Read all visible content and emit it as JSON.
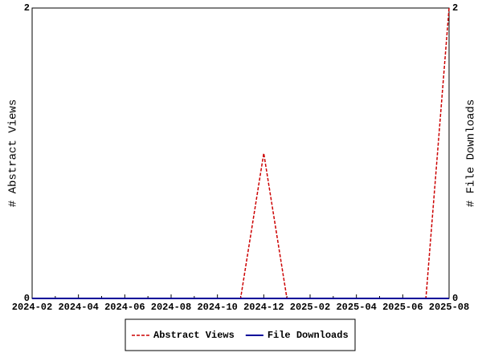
{
  "chart_data": {
    "type": "line",
    "categories": [
      "2024-02",
      null,
      "2024-04",
      null,
      "2024-06",
      null,
      "2024-08",
      null,
      "2024-10",
      null,
      "2024-12",
      null,
      "2025-02",
      null,
      "2025-04",
      null,
      "2025-06",
      null,
      "2025-08"
    ],
    "y_label": "# Abstract Views",
    "y2_label": "# File Downloads",
    "ylim": [
      0,
      2
    ],
    "yticks": [
      0,
      2
    ],
    "y2lim": [
      0,
      2
    ],
    "y2ticks": [
      0,
      2
    ],
    "legend": "bottom",
    "series": [
      {
        "name": "Abstract Views",
        "color": "#cc0000",
        "dash": true,
        "values": [
          0,
          0,
          0,
          0,
          0,
          0,
          0,
          0,
          0,
          0,
          1,
          0,
          0,
          0,
          0,
          0,
          0,
          0,
          2
        ]
      },
      {
        "name": "File Downloads",
        "color": "#000099",
        "axis": "y2",
        "values": [
          0,
          0,
          0,
          0,
          0,
          0,
          0,
          0,
          0,
          0,
          0,
          0,
          0,
          0,
          0,
          0,
          0,
          0,
          0
        ]
      }
    ]
  }
}
